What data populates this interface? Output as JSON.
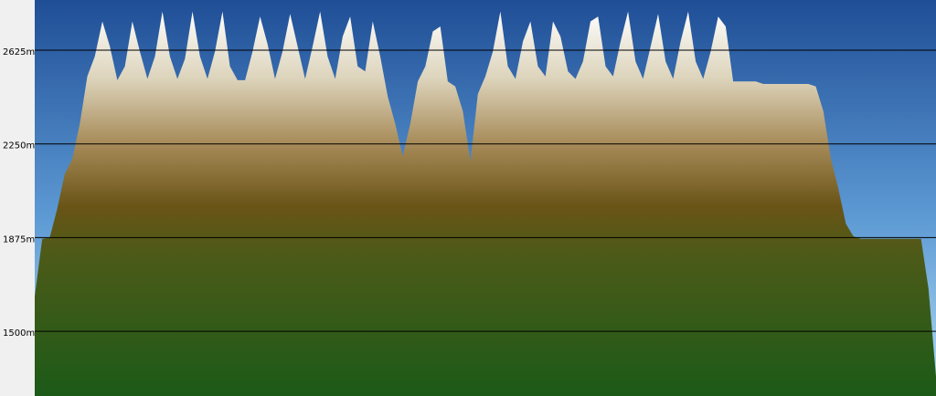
{
  "chart_data": {
    "type": "area",
    "values": [
      1640,
      1870,
      1875,
      1990,
      2130,
      2190,
      2330,
      2520,
      2600,
      2740,
      2640,
      2505,
      2560,
      2740,
      2620,
      2510,
      2600,
      2780,
      2600,
      2510,
      2590,
      2780,
      2600,
      2510,
      2620,
      2780,
      2560,
      2505,
      2505,
      2620,
      2760,
      2650,
      2510,
      2620,
      2770,
      2640,
      2510,
      2640,
      2780,
      2600,
      2510,
      2680,
      2760,
      2560,
      2540,
      2740,
      2600,
      2440,
      2330,
      2200,
      2330,
      2500,
      2560,
      2700,
      2720,
      2500,
      2480,
      2380,
      2180,
      2450,
      2520,
      2620,
      2780,
      2560,
      2510,
      2660,
      2740,
      2560,
      2520,
      2740,
      2680,
      2540,
      2510,
      2580,
      2740,
      2760,
      2560,
      2520,
      2660,
      2780,
      2580,
      2510,
      2640,
      2770,
      2580,
      2510,
      2660,
      2780,
      2580,
      2510,
      2620,
      2760,
      2720,
      2500,
      2500,
      2500,
      2500,
      2490,
      2490,
      2490,
      2490,
      2490,
      2490,
      2490,
      2480,
      2380,
      2190,
      2070,
      1930,
      1880,
      1870,
      1870,
      1870,
      1870,
      1870,
      1870,
      1870,
      1870,
      1870,
      1670,
      1320
    ],
    "ylim": [
      1241,
      2826
    ],
    "yticks": [
      {
        "value": 1500,
        "label": "1500m"
      },
      {
        "value": 1875,
        "label": "1875m"
      },
      {
        "value": 2250,
        "label": "2250m"
      },
      {
        "value": 2625,
        "label": "2625m"
      }
    ],
    "grid": true
  }
}
